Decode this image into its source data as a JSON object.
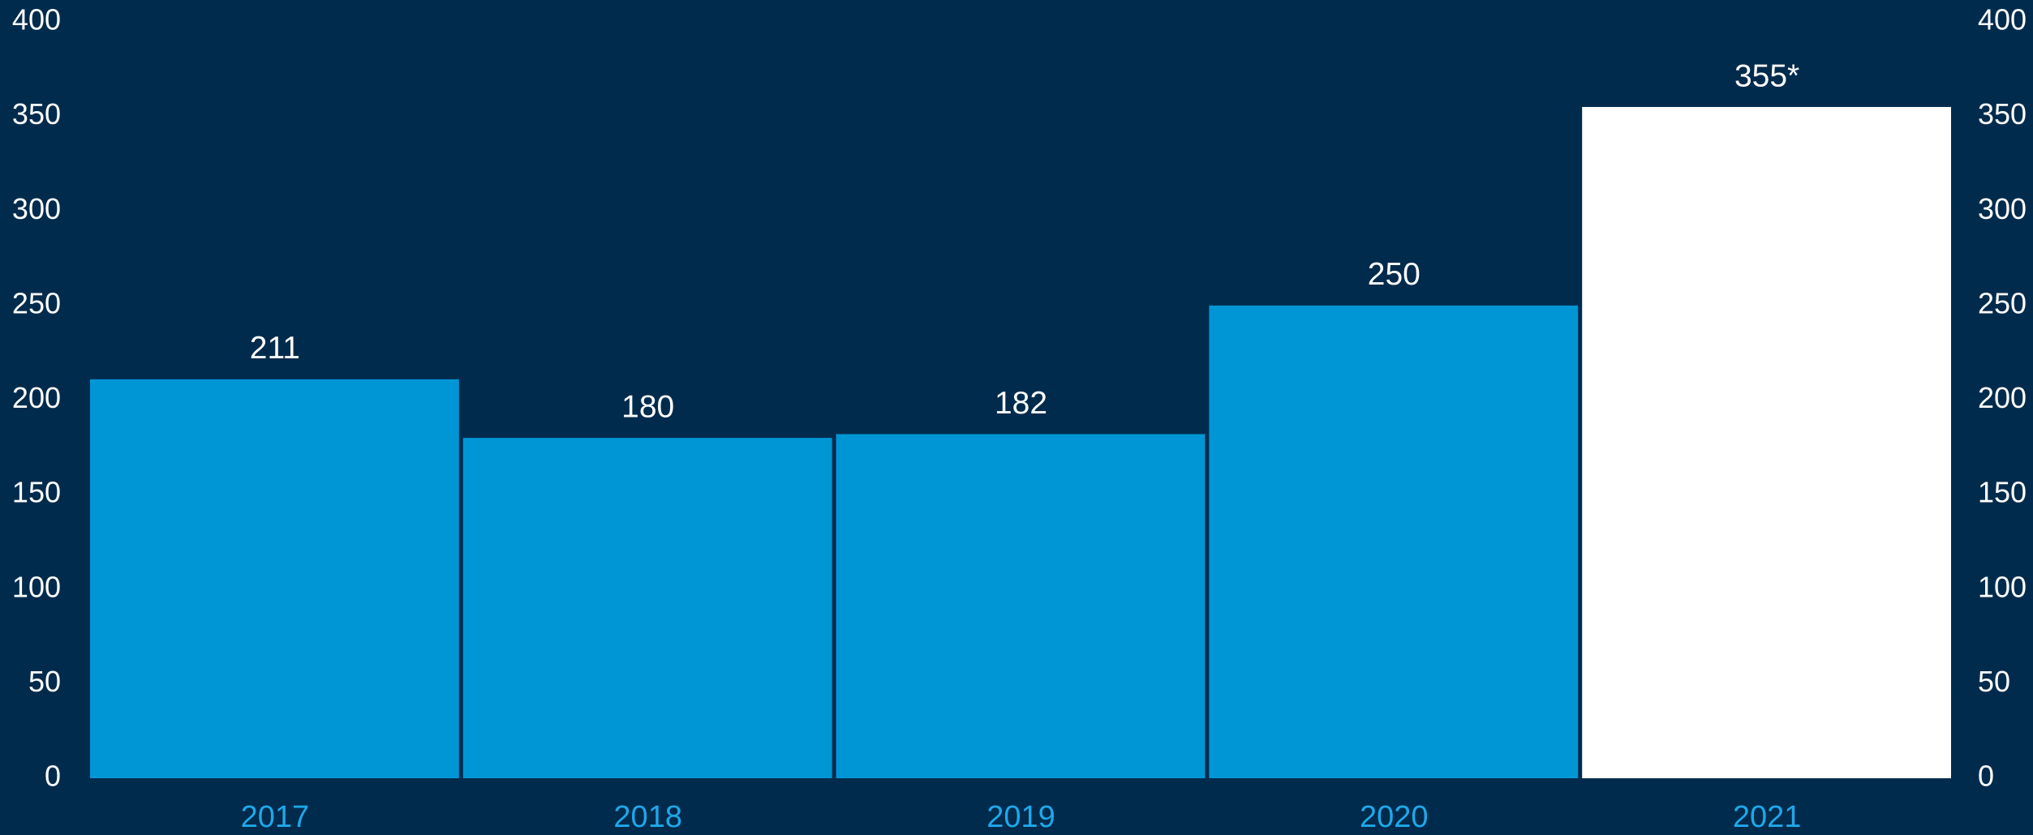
{
  "chart_data": {
    "type": "bar",
    "categories": [
      "2017",
      "2018",
      "2019",
      "2020",
      "2021"
    ],
    "values": [
      211,
      180,
      182,
      250,
      355
    ],
    "value_labels": [
      "211",
      "180",
      "182",
      "250",
      "355*"
    ],
    "colors": [
      "#0096d6",
      "#0096d6",
      "#0096d6",
      "#0096d6",
      "#ffffff"
    ],
    "ylim": [
      0,
      400
    ],
    "yticks": [
      0,
      50,
      100,
      150,
      200,
      250,
      300,
      350,
      400
    ],
    "y2lim": [
      0,
      400
    ],
    "y2ticks": [
      0,
      50,
      100,
      150,
      200,
      250,
      300,
      350,
      400
    ],
    "grid": false
  }
}
